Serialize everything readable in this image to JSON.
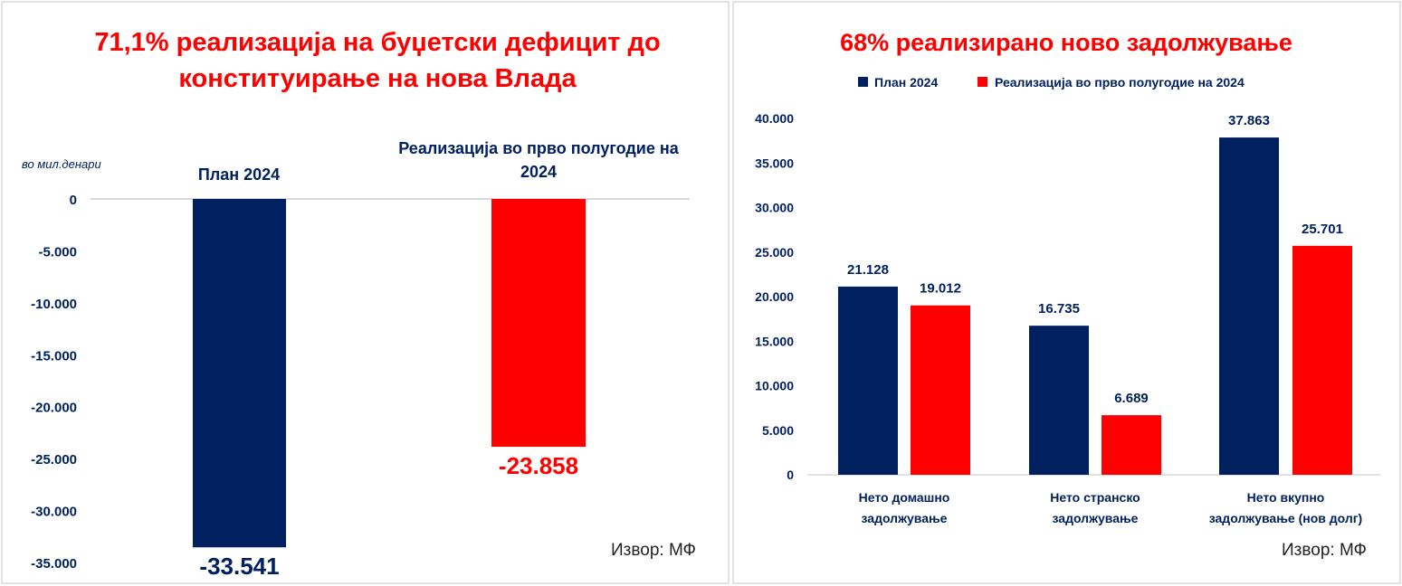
{
  "colors": {
    "plan": "#002060",
    "real": "#ff0000",
    "title": "#ff0000",
    "text": "#002060",
    "grid": "#d9d9d9"
  },
  "chart_data": [
    {
      "type": "bar",
      "title_lines": [
        "71,1% реализација на буџетски дефицит до",
        "конституирање на нова Влада"
      ],
      "unit_label": "во мил.денари",
      "categories": [
        "План 2024",
        "Реализација во прво полугодие на 2024"
      ],
      "category_label_lines": [
        [
          "План 2024"
        ],
        [
          "Реализација во прво полугодие на",
          "2024"
        ]
      ],
      "values": [
        -33541,
        -23858
      ],
      "data_labels": [
        "-33.541",
        "-23.858"
      ],
      "ylim": [
        -35000,
        0
      ],
      "yticks": [
        0,
        -5000,
        -10000,
        -15000,
        -20000,
        -25000,
        -30000,
        -35000
      ],
      "ytick_labels": [
        "0",
        "-5.000",
        "-10.000",
        "-15.000",
        "-20.000",
        "-25.000",
        "-30.000",
        "-35.000"
      ],
      "source": "Извор: МФ"
    },
    {
      "type": "bar",
      "title": "68% реализирано ново задолжување",
      "legend": [
        "План 2024",
        "Реализација во прво полугодие на 2024"
      ],
      "legend_position": "top",
      "category_label_lines": [
        [
          "Нето домашно",
          "задолжување"
        ],
        [
          "Нето странско",
          "задолжување"
        ],
        [
          "Нето вкупно",
          "задолжување (нов долг)"
        ]
      ],
      "series": [
        {
          "name": "План 2024",
          "values": [
            21128,
            16735,
            37863
          ],
          "labels": [
            "21.128",
            "16.735",
            "37.863"
          ]
        },
        {
          "name": "Реализација во прво полугодие на 2024",
          "values": [
            19012,
            6689,
            25701
          ],
          "labels": [
            "19.012",
            "6.689",
            "25.701"
          ]
        }
      ],
      "ylim": [
        0,
        40000
      ],
      "yticks": [
        0,
        5000,
        10000,
        15000,
        20000,
        25000,
        30000,
        35000,
        40000
      ],
      "ytick_labels": [
        "0",
        "5.000",
        "10.000",
        "15.000",
        "20.000",
        "25.000",
        "30.000",
        "35.000",
        "40.000"
      ],
      "source": "Извор: МФ"
    }
  ]
}
